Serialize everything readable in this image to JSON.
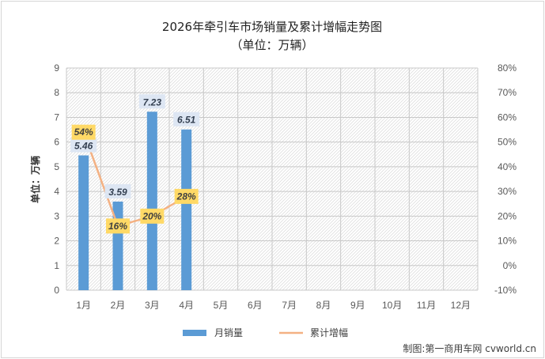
{
  "chart_data": {
    "type": "bar+line",
    "title": "2026年牵引车市场销量及累计增幅走势图",
    "subtitle": "（单位：万辆）",
    "ylabel": "单位：万辆",
    "categories": [
      "1月",
      "2月",
      "3月",
      "4月",
      "5月",
      "6月",
      "7月",
      "8月",
      "9月",
      "10月",
      "11月",
      "12月"
    ],
    "series": [
      {
        "name": "月销量",
        "type": "bar",
        "axis": "left",
        "color": "#5b9bd5",
        "values": [
          5.46,
          3.59,
          7.23,
          6.51,
          null,
          null,
          null,
          null,
          null,
          null,
          null,
          null
        ],
        "labels": [
          "5.46",
          "3.59",
          "7.23",
          "6.51"
        ]
      },
      {
        "name": "累计增幅",
        "type": "line",
        "axis": "right",
        "color": "#f4b183",
        "values": [
          54,
          16,
          20,
          28,
          null,
          null,
          null,
          null,
          null,
          null,
          null,
          null
        ],
        "labels": [
          "54%",
          "16%",
          "20%",
          "28%"
        ]
      }
    ],
    "y_left": {
      "range": [
        0,
        9
      ],
      "ticks": [
        "0",
        "1",
        "2",
        "3",
        "4",
        "5",
        "6",
        "7",
        "8",
        "9"
      ]
    },
    "y_right": {
      "range": [
        -10,
        80
      ],
      "ticks": [
        "-10%",
        "0%",
        "10%",
        "20%",
        "30%",
        "40%",
        "50%",
        "60%",
        "70%",
        "80%"
      ]
    },
    "grid": true,
    "legend_position": "bottom",
    "bar_label_bg": "#dde6f3",
    "line_label_bg": "#ffd966",
    "line_label_color": "#404040",
    "bar_label_color": "#333f50"
  },
  "credit": "制图:第一商用车网 cvworld.cn"
}
